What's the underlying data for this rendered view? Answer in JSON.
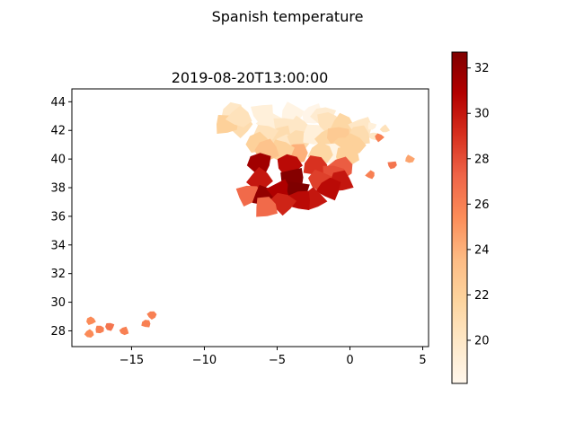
{
  "figure": {
    "suptitle": "Spanish temperature",
    "axes_title": "2019-08-20T13:00:00"
  },
  "colorbar": {
    "colormap": "OrRd",
    "vmin": 18.1,
    "vmax": 32.7,
    "ticks": [
      20,
      22,
      24,
      26,
      28,
      30,
      32
    ],
    "tick_labels": [
      "20",
      "22",
      "24",
      "26",
      "28",
      "30",
      "32"
    ]
  },
  "chart_data": {
    "type": "choropleth",
    "title": "2019-08-20T13:00:00",
    "xlim": [
      -19.1,
      5.4
    ],
    "ylim": [
      26.9,
      44.9
    ],
    "xticks": [
      -15,
      -10,
      -5,
      0,
      5
    ],
    "xtick_labels": [
      "−15",
      "−10",
      "−5",
      "0",
      "5"
    ],
    "yticks": [
      28,
      30,
      32,
      34,
      36,
      38,
      40,
      42,
      44
    ],
    "ytick_labels": [
      "28",
      "30",
      "32",
      "34",
      "36",
      "38",
      "40",
      "42",
      "44"
    ],
    "grid": false,
    "regions": [
      {
        "lon": -8.0,
        "lat": 43.2,
        "value": 20.0
      },
      {
        "lon": -7.5,
        "lat": 42.3,
        "value": 21.0
      },
      {
        "lon": -8.5,
        "lat": 42.4,
        "value": 22.0
      },
      {
        "lon": -7.6,
        "lat": 42.9,
        "value": 20.5
      },
      {
        "lon": -6.0,
        "lat": 43.2,
        "value": 19.0
      },
      {
        "lon": -4.0,
        "lat": 43.2,
        "value": 18.5
      },
      {
        "lon": -2.5,
        "lat": 43.1,
        "value": 18.3
      },
      {
        "lon": -1.8,
        "lat": 43.0,
        "value": 19.5
      },
      {
        "lon": -1.5,
        "lat": 42.6,
        "value": 20.5
      },
      {
        "lon": -0.5,
        "lat": 42.4,
        "value": 21.5
      },
      {
        "lon": 0.8,
        "lat": 42.2,
        "value": 20.0
      },
      {
        "lon": 1.5,
        "lat": 42.3,
        "value": 19.0
      },
      {
        "lon": 2.4,
        "lat": 42.1,
        "value": 20.5
      },
      {
        "lon": 1.6,
        "lat": 41.6,
        "value": 20.0
      },
      {
        "lon": 2.0,
        "lat": 41.5,
        "value": 26.0
      },
      {
        "lon": 0.6,
        "lat": 41.6,
        "value": 21.0
      },
      {
        "lon": -5.5,
        "lat": 42.5,
        "value": 19.0
      },
      {
        "lon": -4.5,
        "lat": 42.3,
        "value": 20.0
      },
      {
        "lon": -3.5,
        "lat": 42.2,
        "value": 20.0
      },
      {
        "lon": -4.7,
        "lat": 41.6,
        "value": 21.0
      },
      {
        "lon": -5.8,
        "lat": 41.7,
        "value": 20.5
      },
      {
        "lon": -6.3,
        "lat": 41.1,
        "value": 22.0
      },
      {
        "lon": -4.3,
        "lat": 41.0,
        "value": 20.0
      },
      {
        "lon": -3.5,
        "lat": 41.3,
        "value": 21.0
      },
      {
        "lon": -2.5,
        "lat": 41.7,
        "value": 19.0
      },
      {
        "lon": -1.5,
        "lat": 41.4,
        "value": 21.5
      },
      {
        "lon": -0.8,
        "lat": 41.6,
        "value": 22.5
      },
      {
        "lon": 0.2,
        "lat": 41.0,
        "value": 22.0
      },
      {
        "lon": -0.5,
        "lat": 40.8,
        "value": 22.0
      },
      {
        "lon": -1.3,
        "lat": 40.4,
        "value": 18.5
      },
      {
        "lon": -0.2,
        "lat": 40.2,
        "value": 22.0
      },
      {
        "lon": -2.0,
        "lat": 40.4,
        "value": 21.5
      },
      {
        "lon": -3.7,
        "lat": 40.4,
        "value": 24.0
      },
      {
        "lon": -4.7,
        "lat": 40.6,
        "value": 22.0
      },
      {
        "lon": -5.7,
        "lat": 40.6,
        "value": 23.0
      },
      {
        "lon": -6.2,
        "lat": 39.7,
        "value": 31.5
      },
      {
        "lon": -4.2,
        "lat": 39.6,
        "value": 30.5
      },
      {
        "lon": -2.4,
        "lat": 39.5,
        "value": 29.0
      },
      {
        "lon": -0.6,
        "lat": 39.4,
        "value": 27.5
      },
      {
        "lon": -1.2,
        "lat": 38.9,
        "value": 28.0
      },
      {
        "lon": -6.2,
        "lat": 38.6,
        "value": 30.0
      },
      {
        "lon": -3.9,
        "lat": 38.7,
        "value": 32.5
      },
      {
        "lon": -2.0,
        "lat": 38.5,
        "value": 28.5
      },
      {
        "lon": -0.6,
        "lat": 38.4,
        "value": 30.0
      },
      {
        "lon": -1.4,
        "lat": 37.9,
        "value": 30.5
      },
      {
        "lon": -7.0,
        "lat": 37.5,
        "value": 27.0
      },
      {
        "lon": -5.9,
        "lat": 37.4,
        "value": 32.0
      },
      {
        "lon": -4.8,
        "lat": 37.8,
        "value": 31.0
      },
      {
        "lon": -3.6,
        "lat": 37.8,
        "value": 32.7
      },
      {
        "lon": -2.5,
        "lat": 37.2,
        "value": 30.0
      },
      {
        "lon": -3.4,
        "lat": 37.1,
        "value": 30.5
      },
      {
        "lon": -4.6,
        "lat": 36.9,
        "value": 29.5
      },
      {
        "lon": -5.8,
        "lat": 36.6,
        "value": 27.0
      },
      {
        "lon": 1.4,
        "lat": 38.9,
        "value": 26.0
      },
      {
        "lon": 2.9,
        "lat": 39.6,
        "value": 26.5
      },
      {
        "lon": 4.1,
        "lat": 40.0,
        "value": 24.5
      },
      {
        "lon": -15.5,
        "lat": 28.0,
        "value": 26.0
      },
      {
        "lon": -16.5,
        "lat": 28.3,
        "value": 26.5
      },
      {
        "lon": -17.8,
        "lat": 28.7,
        "value": 25.5
      },
      {
        "lon": -14.0,
        "lat": 28.5,
        "value": 26.0
      },
      {
        "lon": -13.6,
        "lat": 29.1,
        "value": 26.0
      },
      {
        "lon": -17.2,
        "lat": 28.1,
        "value": 26.0
      },
      {
        "lon": -17.9,
        "lat": 27.8,
        "value": 25.5
      }
    ]
  }
}
